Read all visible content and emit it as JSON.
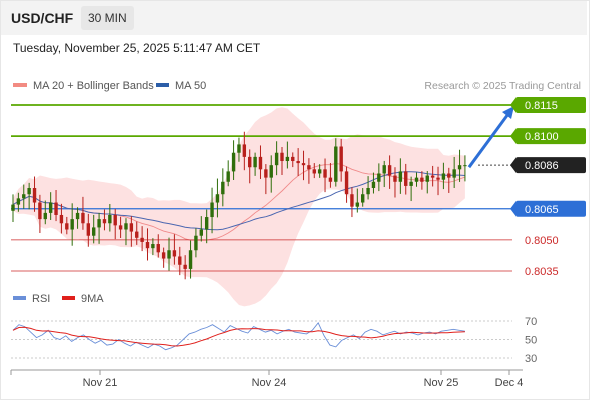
{
  "header": {
    "pair": "USD/CHF",
    "timeframe": "30 MIN"
  },
  "timestamp": "Tuesday, November 25, 2025 5:11:47 AM CET",
  "legend": {
    "main": [
      {
        "label": "MA 20 + Bollinger Bands",
        "color": "#f28b82"
      },
      {
        "label": "MA 50",
        "color": "#2c5ea8"
      }
    ],
    "rsi": [
      {
        "label": "RSI",
        "color": "#6a8fd8"
      },
      {
        "label": "9MA",
        "color": "#e0201c"
      }
    ]
  },
  "credit": "Research © 2025 Trading Central",
  "colors": {
    "up": "#2f6e0b",
    "down": "#b8201c",
    "resistance": "#5aa800",
    "support": "#2d6fd6",
    "target": "#cc2a2a",
    "band": "#fde1e1",
    "ma20": "#f08a8a",
    "ma50": "#4a66b0",
    "arrow": "#2d6fd6",
    "last": "#222222"
  },
  "chart_data": [
    {
      "type": "candlestick",
      "y_range": [
        0.8028,
        0.8122
      ],
      "x_ticks": [
        "Nov 21",
        "Nov 24",
        "Nov 25",
        "Dec 4"
      ],
      "levels": [
        {
          "value": 0.8115,
          "label": "0.8115",
          "kind": "resistance"
        },
        {
          "value": 0.81,
          "label": "0.8100",
          "kind": "resistance"
        },
        {
          "value": 0.8086,
          "label": "0.8086",
          "kind": "last"
        },
        {
          "value": 0.8065,
          "label": "0.8065",
          "kind": "support"
        },
        {
          "value": 0.805,
          "label": "0.8050",
          "kind": "target"
        },
        {
          "value": 0.8035,
          "label": "0.8035",
          "kind": "target"
        }
      ],
      "projection": {
        "from": 0.8086,
        "to": 0.8115
      },
      "close": [
        0.8067,
        0.807,
        0.8072,
        0.8075,
        0.8068,
        0.806,
        0.8063,
        0.8068,
        0.8062,
        0.8058,
        0.8055,
        0.806,
        0.8063,
        0.8058,
        0.8052,
        0.8056,
        0.806,
        0.8058,
        0.8062,
        0.8057,
        0.8055,
        0.8058,
        0.8054,
        0.8051,
        0.8049,
        0.8046,
        0.8048,
        0.8044,
        0.8041,
        0.8045,
        0.8042,
        0.8038,
        0.8036,
        0.8045,
        0.8052,
        0.8055,
        0.8061,
        0.8068,
        0.8072,
        0.8078,
        0.8083,
        0.8092,
        0.8096,
        0.809,
        0.8085,
        0.809,
        0.8084,
        0.808,
        0.8086,
        0.8092,
        0.8088,
        0.809,
        0.8088,
        0.8087,
        0.8086,
        0.8084,
        0.8082,
        0.8084,
        0.808,
        0.8078,
        0.8095,
        0.8083,
        0.8072,
        0.8066,
        0.8068,
        0.8072,
        0.8075,
        0.8078,
        0.8082,
        0.8086,
        0.8081,
        0.8078,
        0.8083,
        0.8076,
        0.8078,
        0.808,
        0.8078,
        0.8081,
        0.808,
        0.8079,
        0.8082,
        0.808,
        0.8084,
        0.8086,
        0.8086
      ],
      "rsi": [
        60,
        66,
        64,
        58,
        52,
        55,
        60,
        52,
        50,
        54,
        48,
        52,
        55,
        50,
        46,
        49,
        44,
        45,
        50,
        46,
        43,
        47,
        44,
        41,
        45,
        43,
        39,
        41,
        44,
        50,
        56,
        58,
        61,
        63,
        66,
        62,
        58,
        65,
        62,
        59,
        57,
        64,
        61,
        58,
        60,
        56,
        59,
        61,
        58,
        57,
        56,
        60,
        68,
        54,
        44,
        42,
        49,
        52,
        55,
        51,
        58,
        61,
        59,
        55,
        57,
        59,
        56,
        58,
        57,
        55,
        57,
        58,
        56,
        59,
        60,
        61,
        60,
        59
      ],
      "rsi_ticks": [
        30,
        50,
        70
      ]
    }
  ]
}
